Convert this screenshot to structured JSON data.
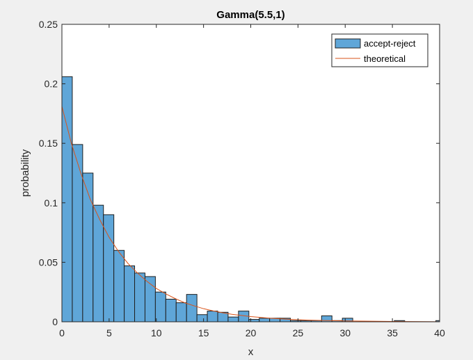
{
  "chart_data": {
    "type": "bar",
    "title": "Gamma(5.5,1)",
    "xlabel": "x",
    "ylabel": "probability",
    "xlim": [
      0,
      40
    ],
    "ylim": [
      0,
      0.25
    ],
    "xticks": [
      0,
      5,
      10,
      15,
      20,
      25,
      30,
      35,
      40
    ],
    "xtick_labels": [
      "0",
      "5",
      "10",
      "15",
      "20",
      "25",
      "30",
      "35",
      "40"
    ],
    "yticks": [
      0,
      0.05,
      0.1,
      0.15,
      0.2,
      0.25
    ],
    "ytick_labels": [
      "0",
      "0.05",
      "0.1",
      "0.15",
      "0.2",
      "0.25"
    ],
    "grid": false,
    "legend_position": "top-right",
    "series": [
      {
        "name": "accept-reject",
        "type": "bar",
        "color": "#5fa6d8",
        "bin_width": 1.1,
        "bins_start": 0,
        "values": [
          0.206,
          0.149,
          0.125,
          0.098,
          0.09,
          0.06,
          0.047,
          0.041,
          0.038,
          0.025,
          0.019,
          0.016,
          0.023,
          0.006,
          0.009,
          0.008,
          0.004,
          0.009,
          0.002,
          0.003,
          0.003,
          0.003,
          0.001,
          0.001,
          0.001,
          0.005,
          0.001,
          0.003,
          0,
          0,
          0,
          0,
          0.001,
          0,
          0,
          0,
          0.001
        ]
      },
      {
        "name": "theoretical",
        "type": "line",
        "color": "#d95319",
        "x": [
          0,
          1,
          2,
          3,
          4,
          5,
          6,
          7,
          8,
          9,
          10,
          11,
          12,
          13,
          14,
          15,
          16,
          17,
          18,
          19,
          20,
          22,
          24,
          26,
          28,
          30,
          35,
          40
        ],
        "y": [
          0.181,
          0.15,
          0.125,
          0.103,
          0.086,
          0.071,
          0.059,
          0.049,
          0.041,
          0.034,
          0.028,
          0.0235,
          0.0195,
          0.016,
          0.0134,
          0.011,
          0.0092,
          0.0076,
          0.0063,
          0.0053,
          0.0044,
          0.003,
          0.0021,
          0.0014,
          0.001,
          0.0007,
          0.0003,
          0.0001
        ]
      }
    ]
  }
}
